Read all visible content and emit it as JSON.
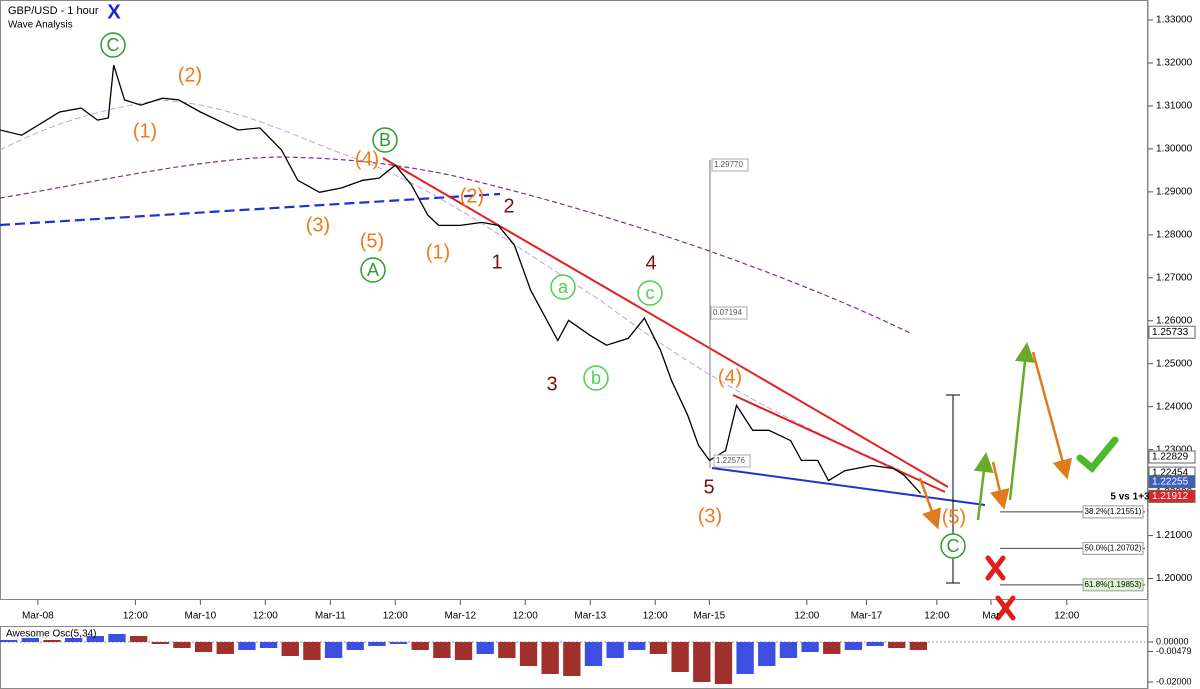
{
  "header": {
    "title": "GBP/USD - 1 hour",
    "subtitle": "Wave Analysis",
    "mark": "X"
  },
  "chart_data": [
    {
      "type": "line",
      "color": "#000000",
      "x": [
        0,
        4,
        7,
        11,
        15,
        18,
        20,
        21,
        23,
        26,
        30,
        33,
        37,
        41,
        44,
        48,
        52,
        55,
        59,
        63,
        67,
        70,
        73,
        76,
        79,
        81,
        85,
        89,
        92,
        95,
        98,
        101,
        103,
        105,
        109,
        112,
        116,
        119,
        122,
        124,
        127,
        129,
        131,
        134,
        136,
        139,
        142,
        146,
        148,
        151,
        153,
        156,
        161,
        165,
        167,
        170
      ],
      "values": [
        1.3044,
        1.3032,
        1.3055,
        1.3086,
        1.3095,
        1.3067,
        1.3072,
        1.3195,
        1.3114,
        1.3102,
        1.3118,
        1.3114,
        1.3086,
        1.3062,
        1.3044,
        1.3049,
        1.2997,
        1.2927,
        1.2899,
        1.2909,
        1.2927,
        1.2932,
        1.2962,
        1.2916,
        1.2846,
        1.2822,
        1.2822,
        1.2829,
        1.2822,
        1.2776,
        1.2671,
        1.2601,
        1.2554,
        1.2601,
        1.2566,
        1.2543,
        1.2559,
        1.2606,
        1.2531,
        1.2461,
        1.238,
        1.231,
        1.2275,
        1.2298,
        1.2403,
        1.2345,
        1.2345,
        1.2321,
        1.2275,
        1.2275,
        1.2228,
        1.2251,
        1.2263,
        1.2256,
        1.224,
        1.2198
      ],
      "xlim": [
        0,
        212
      ],
      "xticks": [
        {
          "value": 7,
          "label": "Mar-08"
        },
        {
          "value": 25,
          "label": "12:00"
        },
        {
          "value": 37,
          "label": "Mar-10"
        },
        {
          "value": 49,
          "label": "12:00"
        },
        {
          "value": 61,
          "label": "Mar-11"
        },
        {
          "value": 73,
          "label": "12:00"
        },
        {
          "value": 85,
          "label": "Mar-12"
        },
        {
          "value": 97,
          "label": "12:00"
        },
        {
          "value": 109,
          "label": "Mar-13"
        },
        {
          "value": 121,
          "label": "12:00"
        },
        {
          "value": 131,
          "label": "Mar-15"
        },
        {
          "value": 149,
          "label": "12:00"
        },
        {
          "value": 160,
          "label": "Mar-17"
        },
        {
          "value": 173,
          "label": "12:00"
        },
        {
          "value": 183,
          "label": "Mar"
        },
        {
          "value": 197,
          "label": "12:00"
        }
      ],
      "ylim": [
        1.195,
        1.3335
      ],
      "yticks": [
        {
          "value": 1.2,
          "label": "1.20000"
        },
        {
          "value": 1.21,
          "label": "1.21000"
        },
        {
          "value": 1.22,
          "label": "1.22000"
        },
        {
          "value": 1.23,
          "label": "1.23000"
        },
        {
          "value": 1.24,
          "label": "1.24000"
        },
        {
          "value": 1.25,
          "label": "1.25000"
        },
        {
          "value": 1.26,
          "label": "1.26000"
        },
        {
          "value": 1.27,
          "label": "1.27000"
        },
        {
          "value": 1.28,
          "label": "1.28000"
        },
        {
          "value": 1.29,
          "label": "1.29000"
        },
        {
          "value": 1.3,
          "label": "1.30000"
        },
        {
          "value": 1.31,
          "label": "1.31000"
        },
        {
          "value": 1.32,
          "label": "1.32000"
        },
        {
          "value": 1.33,
          "label": "1.33000"
        }
      ],
      "grid": false,
      "price_labels": {
        "values": [
          1.25733,
          1.22829,
          1.22454,
          1.22255,
          1.21912
        ],
        "colors": [
          "#ffffff",
          "#ffffff",
          "#ffffff",
          "#3c5fbf",
          "#d9262a"
        ]
      },
      "fib_levels": [
        {
          "value": 1.21551,
          "label": "38.2%(1.21551)"
        },
        {
          "value": 1.20702,
          "label": "50.0%(1.20702)"
        },
        {
          "value": 1.19853,
          "label": "61.8%(1.19853)"
        }
      ],
      "annotations": [
        {
          "text": "C",
          "color": "#2e9b2e",
          "style": "circle"
        },
        {
          "text": "(2)",
          "color": "#f07a1a",
          "style": "plain"
        },
        {
          "text": "(1)",
          "color": "#f07a1a",
          "style": "plain"
        },
        {
          "text": "B",
          "color": "#2e9b2e",
          "style": "circle"
        },
        {
          "text": "(4)",
          "color": "#f07a1a",
          "style": "plain"
        },
        {
          "text": "(3)",
          "color": "#f07a1a",
          "style": "plain"
        },
        {
          "text": "(5)",
          "color": "#f07a1a",
          "style": "plain"
        },
        {
          "text": "A",
          "color": "#2e9b2e",
          "style": "circle"
        },
        {
          "text": "(2)",
          "color": "#f07a1a",
          "style": "plain"
        },
        {
          "text": "(1)",
          "color": "#f07a1a",
          "style": "plain"
        },
        {
          "text": "2",
          "color": "#7a1010",
          "style": "plain"
        },
        {
          "text": "1",
          "color": "#7a1010",
          "style": "plain"
        },
        {
          "text": "a",
          "color": "#4ccf4c",
          "style": "circle"
        },
        {
          "text": "3",
          "color": "#7a1010",
          "style": "plain"
        },
        {
          "text": "b",
          "color": "#4ccf4c",
          "style": "circle"
        },
        {
          "text": "4",
          "color": "#7a1010",
          "style": "plain"
        },
        {
          "text": "c",
          "color": "#4ccf4c",
          "style": "circle"
        },
        {
          "text": "(4)",
          "color": "#f07a1a",
          "style": "plain"
        },
        {
          "text": "5",
          "color": "#7a1010",
          "style": "plain"
        },
        {
          "text": "(3)",
          "color": "#f07a1a",
          "style": "plain"
        },
        {
          "text": "(5)",
          "color": "#f07a1a",
          "style": "plain"
        },
        {
          "text": "C",
          "color": "#2e9b2e",
          "style": "circle"
        },
        {
          "text": "1.29770",
          "color": "#555555",
          "style": "box"
        },
        {
          "text": "0.07194",
          "color": "#555555",
          "style": "box"
        },
        {
          "text": "1.22576",
          "color": "#555555",
          "style": "box"
        },
        {
          "text": "5 vs 1+3",
          "color": "#000000",
          "style": "bold"
        }
      ]
    },
    {
      "type": "bar",
      "title": "Awesome Osc(5,34)",
      "up_color": "#3c4fe0",
      "down_color": "#a0302c",
      "x": [
        0,
        4,
        8,
        12,
        16,
        20,
        24,
        28,
        32,
        36,
        40,
        44,
        48,
        52,
        56,
        60,
        64,
        68,
        72,
        76,
        80,
        84,
        88,
        92,
        96,
        100,
        104,
        108,
        112,
        116,
        120,
        124,
        128,
        132,
        136,
        140,
        144,
        148,
        152,
        156,
        160,
        164,
        168
      ],
      "values": [
        0.001,
        0.002,
        0.001,
        0.002,
        0.003,
        0.004,
        0.003,
        -0.001,
        -0.003,
        -0.005,
        -0.006,
        -0.004,
        -0.003,
        -0.007,
        -0.009,
        -0.008,
        -0.004,
        -0.002,
        -0.001,
        -0.004,
        -0.008,
        -0.009,
        -0.006,
        -0.008,
        -0.012,
        -0.016,
        -0.017,
        -0.012,
        -0.008,
        -0.004,
        -0.006,
        -0.015,
        -0.02,
        -0.021,
        -0.016,
        -0.012,
        -0.008,
        -0.005,
        -0.006,
        -0.004,
        -0.002,
        -0.003,
        -0.004
      ],
      "ylim": [
        -0.0225,
        0.007
      ],
      "yticks": [
        {
          "value": 0,
          "label": "0.00000"
        },
        {
          "value": -0.00479,
          "label": "-0.00479"
        },
        {
          "value": -0.02,
          "label": "-0.02000"
        }
      ]
    }
  ]
}
